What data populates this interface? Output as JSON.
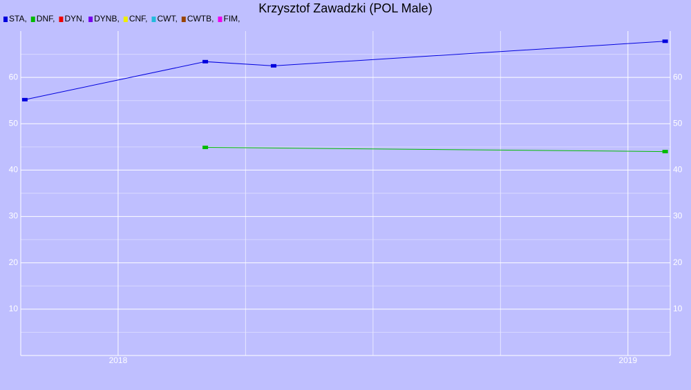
{
  "chart_data": {
    "type": "line",
    "title": "Krzysztof Zawadzki (POL Male)",
    "series": [
      {
        "name": "STA,",
        "color": "#0000dd",
        "x": [
          2017.817,
          2018.171,
          2018.305,
          2019.073
        ],
        "values": [
          55.2,
          63.4,
          62.5,
          67.8
        ]
      },
      {
        "name": "DNF,",
        "color": "#00bb00",
        "x": [
          2018.171,
          2019.073
        ],
        "values": [
          44.9,
          44.0
        ]
      },
      {
        "name": "DYN,",
        "color": "#ee0000",
        "x": [],
        "values": []
      },
      {
        "name": "DYNB,",
        "color": "#7700ee",
        "x": [],
        "values": []
      },
      {
        "name": "CNF,",
        "color": "#eeee00",
        "x": [],
        "values": []
      },
      {
        "name": "CWT,",
        "color": "#22bbdd",
        "x": [],
        "values": []
      },
      {
        "name": "CWTB,",
        "color": "#994400",
        "x": [],
        "values": []
      },
      {
        "name": "FIM,",
        "color": "#ee00ee",
        "x": [],
        "values": []
      }
    ],
    "xlim": [
      2017.809,
      2019.083
    ],
    "xticks": [
      2018,
      2019
    ],
    "xminorticks": [
      2018.25,
      2018.5,
      2018.75
    ],
    "ylim": [
      0,
      70
    ],
    "yticks": [
      10,
      20,
      30,
      40,
      50,
      60
    ],
    "yminorticks": [
      5,
      15,
      25,
      35,
      45,
      55,
      65
    ],
    "grid": true
  }
}
